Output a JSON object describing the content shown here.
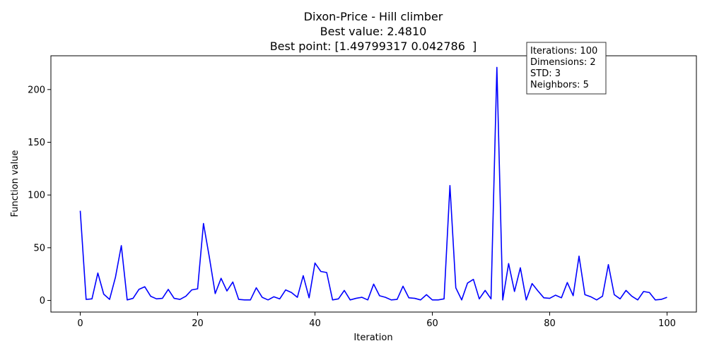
{
  "chart_data": {
    "type": "line",
    "title": [
      "Dixon-Price - Hill climber",
      "Best value: 2.4810",
      "Best point: [1.49799317 0.042786  ]"
    ],
    "xlabel": "Iteration",
    "ylabel": "Function value",
    "xlim": [
      -5,
      105
    ],
    "ylim": [
      -11,
      232
    ],
    "xticks": [
      0,
      20,
      40,
      60,
      80,
      100
    ],
    "yticks": [
      0,
      50,
      100,
      150,
      200
    ],
    "grid": false,
    "line_color": "#0000ff",
    "x": [
      0,
      1,
      2,
      3,
      4,
      5,
      6,
      7,
      8,
      9,
      10,
      11,
      12,
      13,
      14,
      15,
      16,
      17,
      18,
      19,
      20,
      21,
      22,
      23,
      24,
      25,
      26,
      27,
      28,
      29,
      30,
      31,
      32,
      33,
      34,
      35,
      36,
      37,
      38,
      39,
      40,
      41,
      42,
      43,
      44,
      45,
      46,
      47,
      48,
      49,
      50,
      51,
      52,
      53,
      54,
      55,
      56,
      57,
      58,
      59,
      60,
      61,
      62,
      63,
      64,
      65,
      66,
      67,
      68,
      69,
      70,
      71,
      72,
      73,
      74,
      75,
      76,
      77,
      78,
      79,
      80,
      81,
      82,
      83,
      84,
      85,
      86,
      87,
      88,
      89,
      90,
      91,
      92,
      93,
      94,
      95,
      96,
      97,
      98,
      99,
      100
    ],
    "values": [
      85,
      1,
      1.5,
      26,
      6,
      1,
      22,
      52,
      0.5,
      2,
      10.5,
      13,
      4,
      1.5,
      2,
      10.5,
      2,
      1,
      4,
      10,
      11,
      73,
      41,
      6.5,
      21,
      9,
      17.5,
      1,
      0.5,
      0.5,
      12,
      3,
      0.5,
      3.5,
      1.5,
      10,
      7.5,
      3,
      23.5,
      2.5,
      35.5,
      27.5,
      26.5,
      0.5,
      1.5,
      9.5,
      0.5,
      2,
      3,
      0.5,
      15.5,
      4.5,
      3,
      0.5,
      1,
      13.5,
      2.5,
      2,
      0.5,
      5.5,
      0.5,
      0.5,
      1.5,
      109,
      12,
      0.5,
      16.5,
      20,
      1.5,
      9.5,
      1.5,
      221,
      0.5,
      35,
      8.5,
      31,
      0.5,
      16,
      9,
      2.5,
      2,
      5,
      2.5,
      17,
      4.5,
      42,
      5.5,
      3.5,
      0.5,
      4,
      34,
      5.5,
      1.5,
      9.5,
      4,
      0.5,
      8.5,
      7.5,
      0.5,
      1,
      3
    ],
    "info_box": [
      "Iterations: 100",
      "Dimensions: 2",
      "STD: 3",
      "Neighbors: 5"
    ]
  }
}
